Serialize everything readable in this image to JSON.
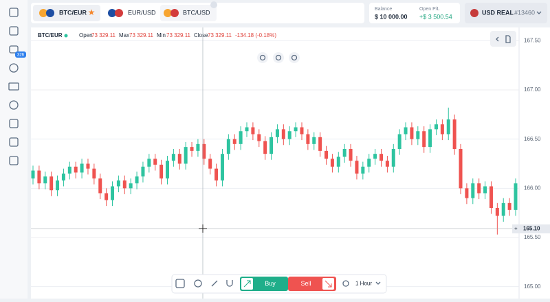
{
  "sidebar": {
    "badge": "326"
  },
  "tabs": [
    {
      "label": "BTC/EUR",
      "active": true
    },
    {
      "label": "EUR/USD"
    },
    {
      "label": "BTC/USD"
    }
  ],
  "account": {
    "balance_label": "Balance",
    "balance": "$ 10 000.00",
    "pl_label": "Open P/L",
    "pl": "+$ 3 500.54",
    "currency": "USD REAL",
    "account_id": "#13460"
  },
  "chart_data": {
    "type": "candlestick",
    "header": {
      "symbol": "BTC/EUR",
      "open_label": "Open",
      "open": "73 329.11",
      "max_label": "Max",
      "max": "73 329.11",
      "min_label": "Min",
      "min": "73 329.11",
      "close_label": "Close",
      "close": "73 329.11",
      "change": "-134.18 (-0.18%)"
    },
    "up_color": "#2ec4a0",
    "down_color": "#ef5350",
    "grid": true,
    "ylim": [
      164.9,
      167.6
    ],
    "yticks": [
      {
        "value": 165,
        "label": "165.00"
      },
      {
        "value": 165.5,
        "label": "165.50"
      },
      {
        "value": 166,
        "label": "166.00"
      },
      {
        "value": 166.5,
        "label": "166.50"
      },
      {
        "value": 167,
        "label": "167.00"
      },
      {
        "value": 167.5,
        "label": "167.50"
      }
    ],
    "crosshair_label": "165.10",
    "open": [
      166.1,
      166.18,
      166.05,
      166.12,
      165.98,
      166.08,
      166.15,
      166.22,
      166.16,
      166.25,
      166.2,
      166.1,
      165.95,
      165.88,
      166.02,
      166.08,
      166.0,
      166.05,
      166.12,
      166.22,
      166.3,
      166.24,
      166.1,
      166.28,
      166.35,
      166.25,
      166.42,
      166.38,
      166.45,
      166.3,
      166.2,
      166.08,
      166.35,
      166.5,
      166.45,
      166.58,
      166.62,
      166.55,
      166.48,
      166.35,
      166.52,
      166.6,
      166.5,
      166.58,
      166.62,
      166.55,
      166.45,
      166.52,
      166.38,
      166.3,
      166.22,
      166.32,
      166.4,
      166.28,
      166.15,
      166.22,
      166.3,
      166.35,
      166.28,
      166.22,
      166.4,
      166.55,
      166.62,
      166.5,
      166.58,
      166.42,
      166.6,
      166.65,
      166.55,
      166.7,
      166.4,
      166.0,
      165.9,
      166.05,
      165.95,
      166.02,
      165.8,
      165.72,
      165.85,
      165.78
    ],
    "high": [
      166.23,
      166.23,
      166.17,
      166.17,
      166.13,
      166.2,
      166.27,
      166.27,
      166.3,
      166.3,
      166.25,
      166.15,
      166.0,
      166.07,
      166.13,
      166.13,
      166.1,
      166.17,
      166.27,
      166.35,
      166.35,
      166.29,
      166.33,
      166.4,
      166.4,
      166.47,
      166.47,
      166.5,
      166.5,
      166.35,
      166.25,
      166.4,
      166.55,
      166.55,
      166.63,
      166.67,
      166.67,
      166.6,
      166.53,
      166.57,
      166.65,
      166.65,
      166.63,
      166.67,
      166.67,
      166.6,
      166.57,
      166.57,
      166.43,
      166.35,
      166.37,
      166.45,
      166.45,
      166.33,
      166.27,
      166.35,
      166.4,
      166.4,
      166.33,
      166.45,
      166.6,
      166.67,
      166.67,
      166.63,
      166.63,
      166.65,
      166.7,
      166.7,
      166.82,
      166.75,
      166.45,
      166.05,
      166.1,
      166.1,
      166.07,
      166.07,
      165.85,
      165.9,
      165.9,
      166.1
    ],
    "low": [
      166.04,
      165.99,
      165.99,
      165.92,
      165.92,
      166.02,
      166.09,
      166.1,
      166.1,
      166.14,
      166.04,
      165.89,
      165.82,
      165.82,
      165.96,
      165.94,
      165.94,
      165.99,
      166.06,
      166.16,
      166.18,
      166.04,
      166.04,
      166.22,
      166.19,
      166.19,
      166.32,
      166.32,
      166.24,
      166.14,
      166.02,
      166.02,
      166.29,
      166.39,
      166.39,
      166.52,
      166.49,
      166.42,
      166.29,
      166.29,
      166.46,
      166.44,
      166.44,
      166.52,
      166.49,
      166.39,
      166.39,
      166.32,
      166.24,
      166.16,
      166.16,
      166.26,
      166.22,
      166.09,
      166.09,
      166.16,
      166.24,
      166.22,
      166.16,
      166.16,
      166.34,
      166.49,
      166.44,
      166.44,
      166.36,
      166.36,
      166.54,
      166.49,
      166.49,
      166.34,
      165.94,
      165.84,
      165.84,
      165.89,
      165.89,
      165.74,
      165.53,
      165.66,
      165.72,
      165.72
    ],
    "close": [
      166.18,
      166.05,
      166.12,
      165.98,
      166.08,
      166.15,
      166.22,
      166.16,
      166.25,
      166.2,
      166.1,
      165.95,
      165.88,
      166.02,
      166.08,
      166.0,
      166.05,
      166.12,
      166.22,
      166.3,
      166.24,
      166.1,
      166.28,
      166.35,
      166.25,
      166.42,
      166.38,
      166.45,
      166.3,
      166.2,
      166.08,
      166.35,
      166.5,
      166.45,
      166.58,
      166.62,
      166.55,
      166.48,
      166.35,
      166.52,
      166.6,
      166.5,
      166.58,
      166.62,
      166.55,
      166.45,
      166.52,
      166.38,
      166.3,
      166.22,
      166.32,
      166.4,
      166.28,
      166.15,
      166.22,
      166.3,
      166.35,
      166.28,
      166.22,
      166.4,
      166.55,
      166.62,
      166.5,
      166.58,
      166.42,
      166.6,
      166.65,
      166.55,
      166.7,
      166.4,
      166.0,
      165.9,
      166.05,
      165.95,
      166.02,
      165.8,
      165.72,
      165.85,
      165.78,
      166.05
    ]
  },
  "toolbar": {
    "buy": "Buy",
    "sell": "Sell",
    "timeframe": "1 Hour"
  }
}
